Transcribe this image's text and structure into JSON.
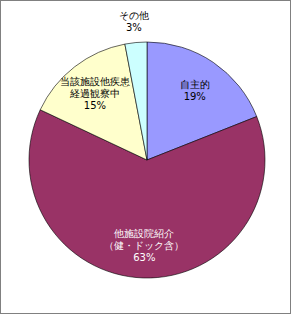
{
  "chart_data": {
    "type": "pie",
    "categories": [
      "自主的",
      "他施設院紹介（健・ドック含）",
      "当該施設他疾患経過観察中",
      "その他"
    ],
    "values": [
      19,
      63,
      15,
      3
    ],
    "value_labels": [
      "19%",
      "63%",
      "15%",
      "3%"
    ],
    "colors": [
      "#9999ff",
      "#993366",
      "#ffffcc",
      "#ccffff"
    ],
    "data_labels": true
  }
}
